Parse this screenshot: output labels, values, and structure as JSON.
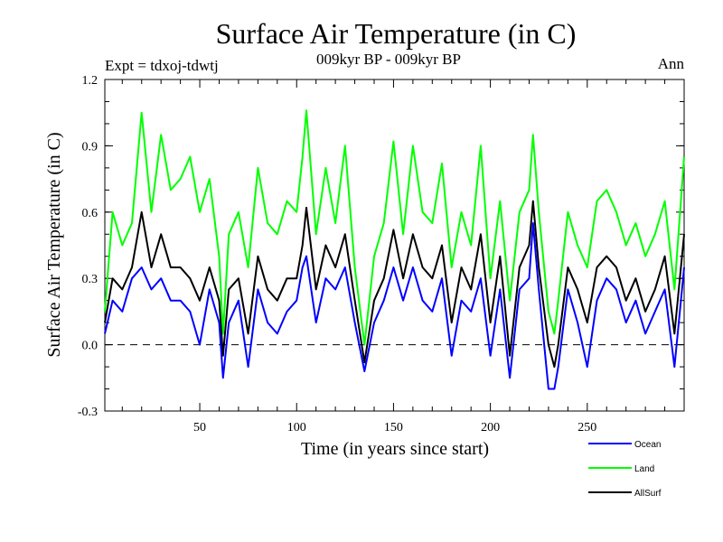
{
  "header": {
    "title": "Surface Air Temperature (in C)",
    "experiment": "Expt = tdxoj-tdwtj",
    "period": "009kyr BP - 009kyr BP",
    "season": "Ann"
  },
  "chart_data": {
    "type": "line",
    "title": "Surface Air Temperature (in C)",
    "xlabel": "Time (in years since start)",
    "ylabel": "Surface Air Temperature (in C)",
    "xlim": [
      1,
      300
    ],
    "ylim": [
      -0.3,
      1.2
    ],
    "xticks": [
      50,
      100,
      150,
      200,
      250
    ],
    "yticks": [
      -0.3,
      0.0,
      0.3,
      0.6,
      0.9,
      1.2
    ],
    "ytick_labels": [
      "-0.3",
      "0.0",
      "0.3",
      "0.6",
      "0.9",
      "1.2"
    ],
    "reference_line": {
      "y": 0.0,
      "style": "dashed"
    },
    "legend": {
      "position": "bottom-right"
    },
    "series": [
      {
        "name": "Ocean",
        "color": "#0000ff",
        "x": [
          1,
          5,
          10,
          15,
          20,
          25,
          30,
          35,
          40,
          45,
          50,
          55,
          60,
          62,
          65,
          70,
          75,
          80,
          85,
          90,
          95,
          100,
          103,
          105,
          110,
          115,
          120,
          125,
          130,
          135,
          140,
          145,
          150,
          155,
          160,
          165,
          170,
          175,
          180,
          185,
          190,
          195,
          200,
          205,
          210,
          215,
          220,
          222,
          225,
          230,
          233,
          235,
          240,
          245,
          250,
          255,
          260,
          265,
          270,
          275,
          280,
          285,
          290,
          295,
          300
        ],
        "values": [
          0.05,
          0.2,
          0.15,
          0.3,
          0.35,
          0.25,
          0.3,
          0.2,
          0.2,
          0.15,
          0.0,
          0.25,
          0.1,
          -0.15,
          0.1,
          0.2,
          -0.1,
          0.25,
          0.1,
          0.05,
          0.15,
          0.2,
          0.35,
          0.4,
          0.1,
          0.3,
          0.25,
          0.35,
          0.1,
          -0.12,
          0.1,
          0.2,
          0.35,
          0.2,
          0.35,
          0.2,
          0.15,
          0.3,
          -0.05,
          0.2,
          0.15,
          0.3,
          -0.05,
          0.25,
          -0.15,
          0.25,
          0.3,
          0.55,
          0.25,
          -0.2,
          -0.2,
          -0.1,
          0.25,
          0.1,
          -0.1,
          0.2,
          0.3,
          0.25,
          0.1,
          0.2,
          0.05,
          0.15,
          0.25,
          -0.1,
          0.35
        ]
      },
      {
        "name": "Land",
        "color": "#00ff00",
        "x": [
          1,
          5,
          10,
          15,
          20,
          25,
          30,
          35,
          40,
          45,
          50,
          55,
          60,
          62,
          65,
          70,
          75,
          80,
          85,
          90,
          95,
          100,
          103,
          105,
          110,
          115,
          120,
          125,
          130,
          135,
          140,
          145,
          150,
          155,
          160,
          165,
          170,
          175,
          180,
          185,
          190,
          195,
          200,
          205,
          210,
          215,
          220,
          222,
          225,
          230,
          233,
          235,
          240,
          245,
          250,
          255,
          260,
          265,
          270,
          275,
          280,
          285,
          290,
          295,
          300
        ],
        "values": [
          0.15,
          0.6,
          0.45,
          0.55,
          1.05,
          0.6,
          0.95,
          0.7,
          0.75,
          0.85,
          0.6,
          0.75,
          0.4,
          0.05,
          0.5,
          0.6,
          0.35,
          0.8,
          0.55,
          0.5,
          0.65,
          0.6,
          0.85,
          1.06,
          0.5,
          0.8,
          0.55,
          0.9,
          0.35,
          0.0,
          0.4,
          0.55,
          0.92,
          0.5,
          0.9,
          0.6,
          0.55,
          0.82,
          0.35,
          0.6,
          0.45,
          0.9,
          0.3,
          0.65,
          0.2,
          0.6,
          0.7,
          0.95,
          0.6,
          0.15,
          0.05,
          0.2,
          0.6,
          0.45,
          0.35,
          0.65,
          0.7,
          0.6,
          0.45,
          0.55,
          0.4,
          0.5,
          0.65,
          0.25,
          0.85
        ]
      },
      {
        "name": "AllSurf",
        "color": "#000000",
        "x": [
          1,
          5,
          10,
          15,
          20,
          25,
          30,
          35,
          40,
          45,
          50,
          55,
          60,
          62,
          65,
          70,
          75,
          80,
          85,
          90,
          95,
          100,
          103,
          105,
          110,
          115,
          120,
          125,
          130,
          135,
          140,
          145,
          150,
          155,
          160,
          165,
          170,
          175,
          180,
          185,
          190,
          195,
          200,
          205,
          210,
          215,
          220,
          222,
          225,
          230,
          233,
          235,
          240,
          245,
          250,
          255,
          260,
          265,
          270,
          275,
          280,
          285,
          290,
          295,
          300
        ],
        "values": [
          0.1,
          0.3,
          0.25,
          0.35,
          0.6,
          0.35,
          0.5,
          0.35,
          0.35,
          0.3,
          0.2,
          0.35,
          0.2,
          -0.05,
          0.25,
          0.3,
          0.05,
          0.4,
          0.25,
          0.2,
          0.3,
          0.3,
          0.45,
          0.62,
          0.25,
          0.45,
          0.35,
          0.5,
          0.2,
          -0.08,
          0.2,
          0.3,
          0.52,
          0.3,
          0.5,
          0.35,
          0.3,
          0.45,
          0.1,
          0.35,
          0.25,
          0.5,
          0.1,
          0.4,
          -0.05,
          0.35,
          0.45,
          0.65,
          0.35,
          0.0,
          -0.1,
          0.0,
          0.35,
          0.25,
          0.1,
          0.35,
          0.4,
          0.35,
          0.2,
          0.3,
          0.15,
          0.25,
          0.4,
          0.05,
          0.5
        ]
      }
    ]
  }
}
